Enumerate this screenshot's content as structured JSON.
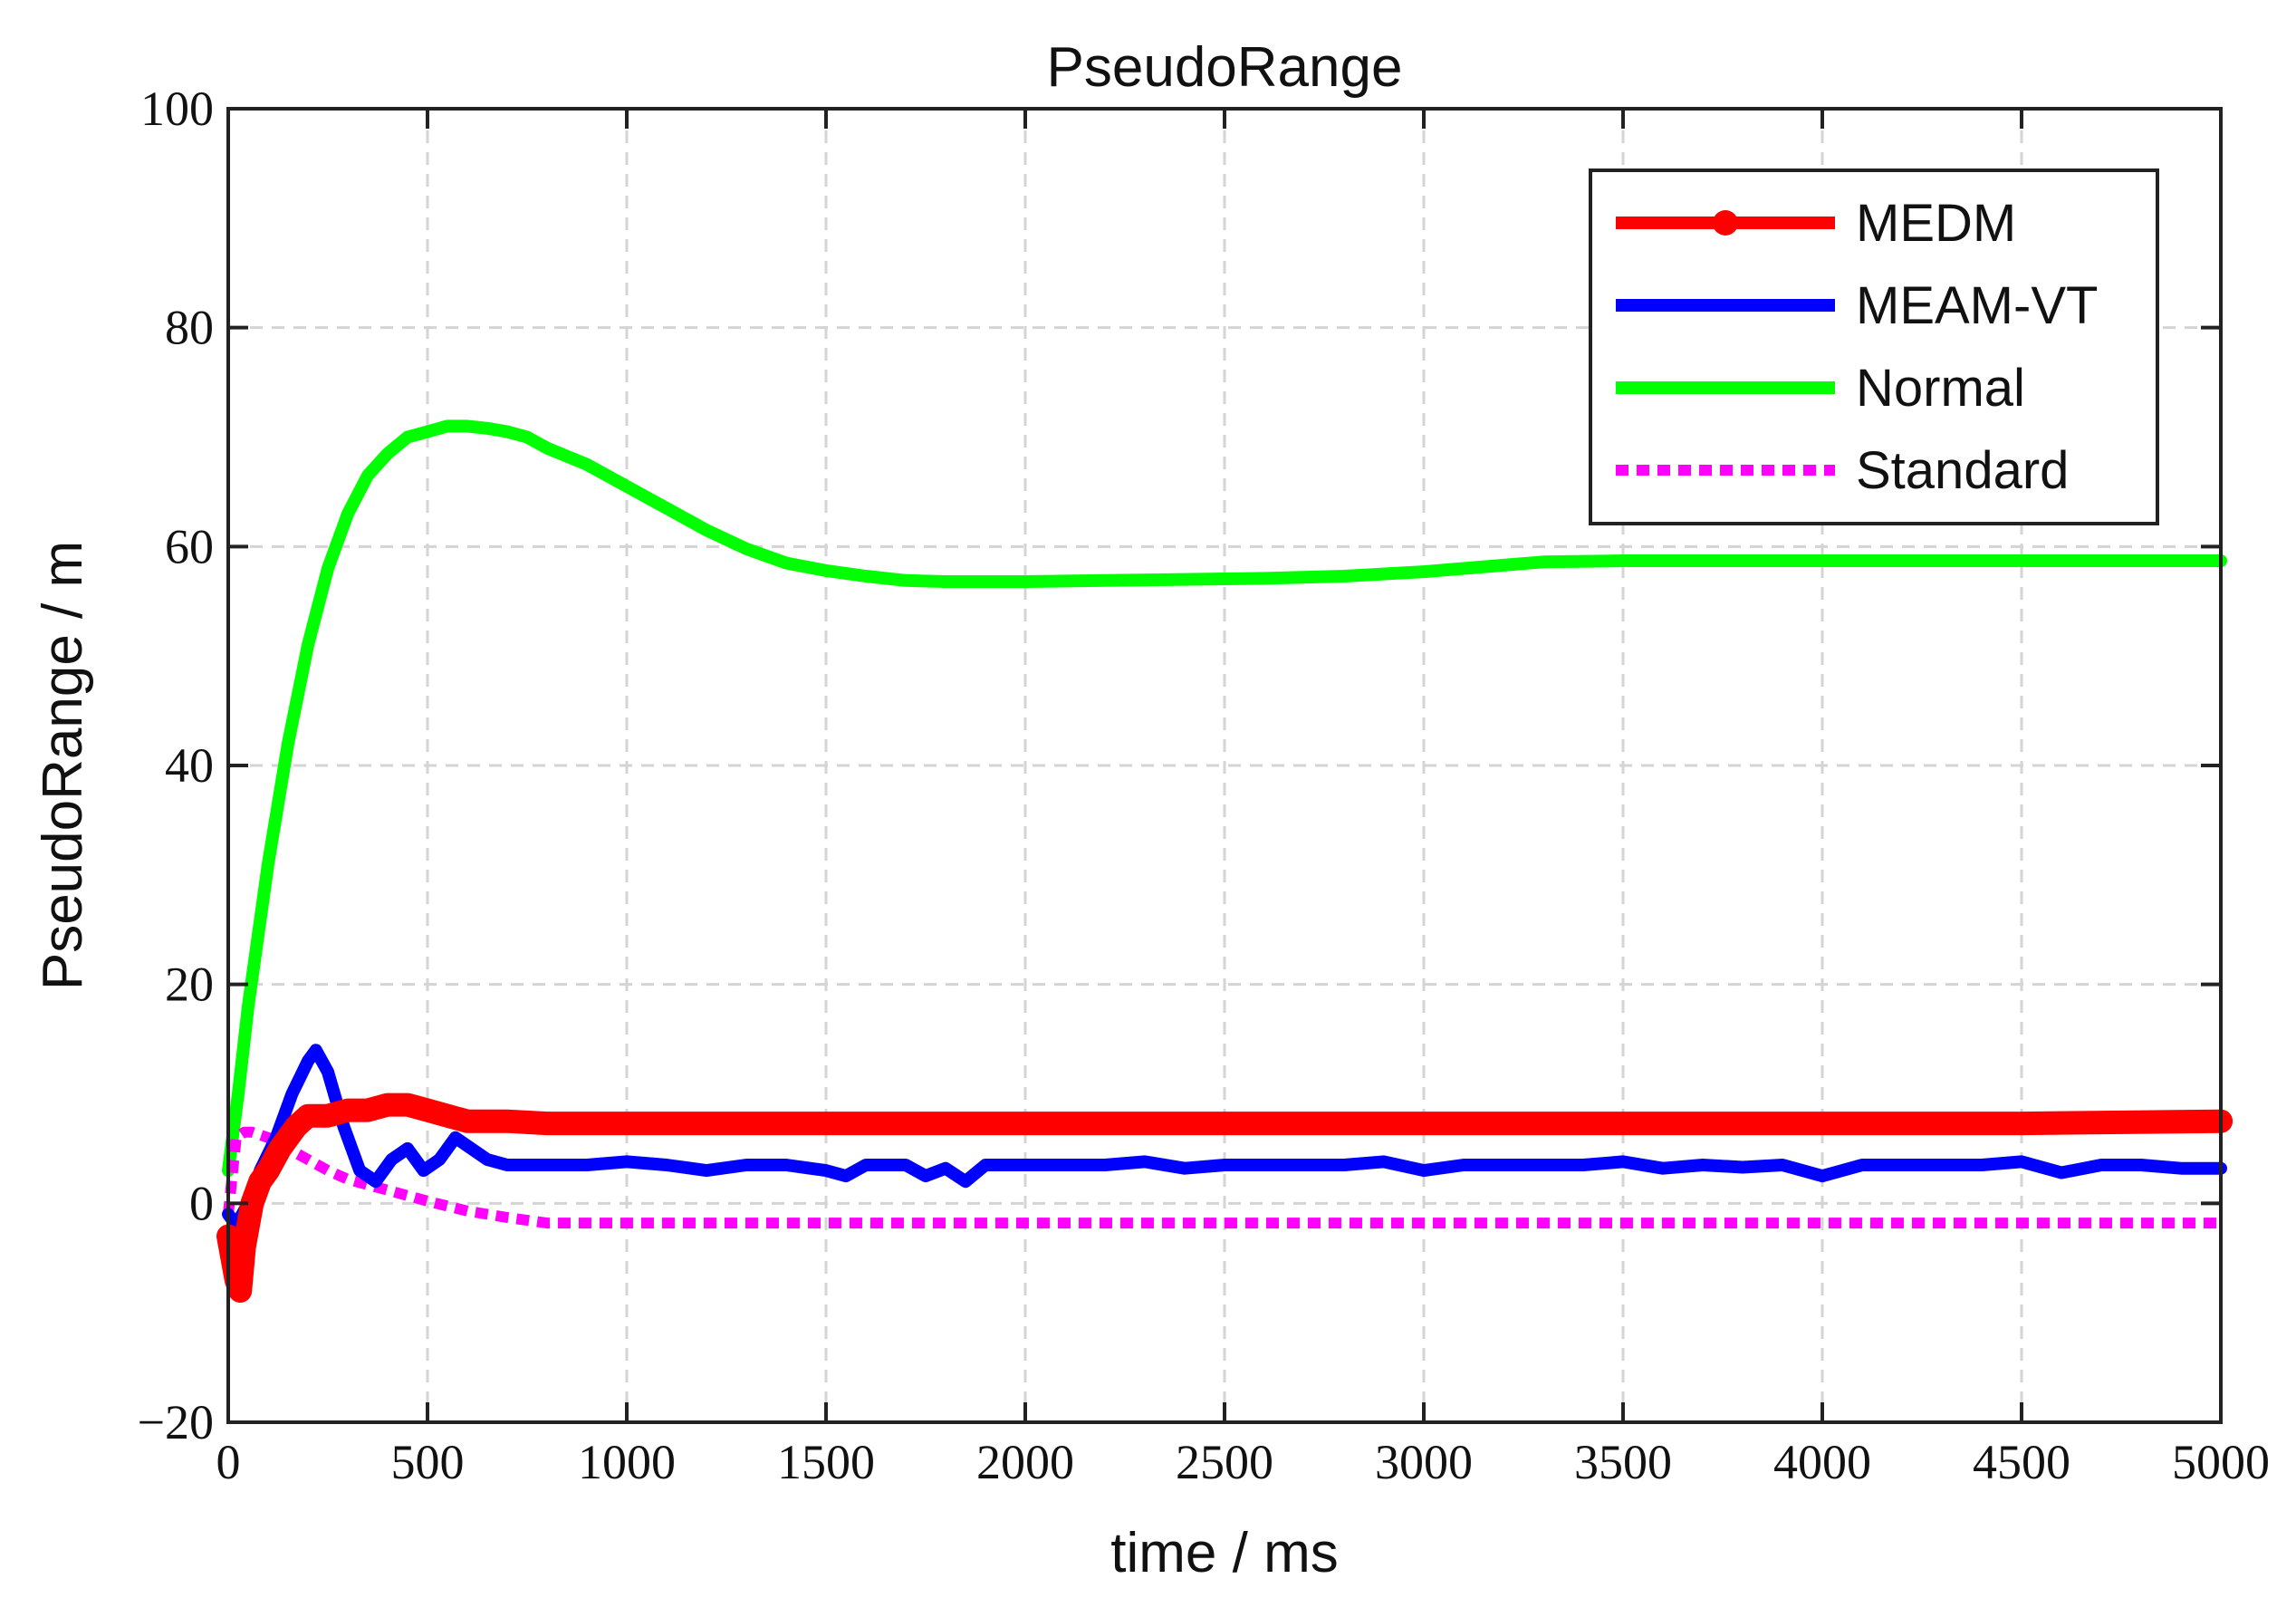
{
  "chart_data": {
    "type": "line",
    "title": "PseudoRange",
    "xlabel": "time / ms",
    "ylabel": "PseudoRange / m",
    "xlim": [
      0,
      5000
    ],
    "ylim": [
      -20,
      100
    ],
    "xticks": [
      0,
      500,
      1000,
      1500,
      2000,
      2500,
      3000,
      3500,
      4000,
      4500,
      5000
    ],
    "yticks": [
      -20,
      0,
      20,
      40,
      60,
      80,
      100
    ],
    "xtick_labels": [
      "0",
      "500",
      "1000",
      "1500",
      "2000",
      "2500",
      "3000",
      "3500",
      "4000",
      "4500",
      "5000"
    ],
    "ytick_labels": [
      "−20",
      "0",
      "20",
      "40",
      "60",
      "80",
      "100"
    ],
    "grid": true,
    "legend_position": "top-right",
    "series": [
      {
        "name": "MEDM",
        "color": "#ff0000",
        "style": "solid-marker",
        "x": [
          0,
          10,
          20,
          30,
          40,
          60,
          80,
          100,
          130,
          170,
          200,
          250,
          300,
          350,
          400,
          450,
          500,
          550,
          600,
          700,
          800,
          1000,
          1500,
          2000,
          2500,
          3000,
          3500,
          4000,
          4500,
          5000
        ],
        "y": [
          -3,
          -5,
          -7,
          -8,
          -4,
          0,
          2,
          3,
          5,
          7,
          8,
          8,
          8.5,
          8.5,
          9,
          9,
          8.5,
          8,
          7.5,
          7.5,
          7.3,
          7.3,
          7.3,
          7.3,
          7.3,
          7.3,
          7.3,
          7.3,
          7.3,
          7.5
        ]
      },
      {
        "name": "MEAM-VT",
        "color": "#0000ff",
        "style": "solid",
        "x": [
          0,
          20,
          50,
          80,
          120,
          160,
          200,
          220,
          250,
          290,
          330,
          370,
          410,
          450,
          490,
          530,
          570,
          610,
          650,
          700,
          800,
          900,
          1000,
          1100,
          1200,
          1300,
          1400,
          1500,
          1550,
          1600,
          1700,
          1750,
          1800,
          1850,
          1900,
          2000,
          2100,
          2200,
          2300,
          2400,
          2500,
          2600,
          2700,
          2800,
          2900,
          3000,
          3100,
          3200,
          3300,
          3400,
          3500,
          3600,
          3700,
          3800,
          3900,
          4000,
          4100,
          4200,
          4300,
          4400,
          4500,
          4600,
          4700,
          4800,
          4900,
          5000
        ],
        "y": [
          -1,
          -2,
          0,
          3,
          6,
          10,
          13,
          14,
          12,
          7,
          3,
          2,
          4,
          5,
          3,
          4,
          6,
          5,
          4,
          3.5,
          3.5,
          3.5,
          3.8,
          3.5,
          3,
          3.5,
          3.5,
          3,
          2.5,
          3.5,
          3.5,
          2.5,
          3.2,
          2,
          3.5,
          3.5,
          3.5,
          3.5,
          3.8,
          3.2,
          3.5,
          3.5,
          3.5,
          3.5,
          3.8,
          3,
          3.5,
          3.5,
          3.5,
          3.5,
          3.8,
          3.2,
          3.5,
          3.3,
          3.5,
          2.5,
          3.5,
          3.5,
          3.5,
          3.5,
          3.8,
          2.8,
          3.5,
          3.5,
          3.2,
          3.2
        ]
      },
      {
        "name": "Normal",
        "color": "#00ff00",
        "style": "solid",
        "x": [
          0,
          25,
          50,
          100,
          150,
          200,
          250,
          300,
          350,
          400,
          450,
          500,
          550,
          600,
          650,
          700,
          750,
          800,
          900,
          1000,
          1100,
          1200,
          1300,
          1400,
          1500,
          1600,
          1700,
          1800,
          2000,
          2200,
          2400,
          2600,
          2800,
          3000,
          3200,
          3300,
          3500,
          4000,
          4500,
          5000
        ],
        "y": [
          3,
          10,
          18,
          31,
          42,
          51,
          58,
          63,
          66.5,
          68.5,
          70,
          70.5,
          71,
          71,
          70.8,
          70.5,
          70,
          69,
          67.5,
          65.5,
          63.5,
          61.5,
          59.8,
          58.5,
          57.8,
          57.3,
          56.9,
          56.8,
          56.8,
          56.9,
          57,
          57.1,
          57.3,
          57.7,
          58.3,
          58.6,
          58.7,
          58.7,
          58.7,
          58.7
        ]
      },
      {
        "name": "Standard",
        "color": "#ff00ff",
        "style": "dotted",
        "x": [
          0,
          20,
          40,
          60,
          100,
          150,
          200,
          250,
          300,
          400,
          500,
          600,
          700,
          800,
          1000,
          1500,
          2000,
          2500,
          3000,
          3500,
          4000,
          4500,
          5000
        ],
        "y": [
          -1,
          6,
          6.5,
          6.5,
          6,
          5,
          4,
          3,
          2.2,
          1.2,
          0.2,
          -0.7,
          -1.3,
          -1.8,
          -1.8,
          -1.8,
          -1.8,
          -1.8,
          -1.8,
          -1.8,
          -1.8,
          -1.8,
          -1.8
        ]
      }
    ]
  }
}
